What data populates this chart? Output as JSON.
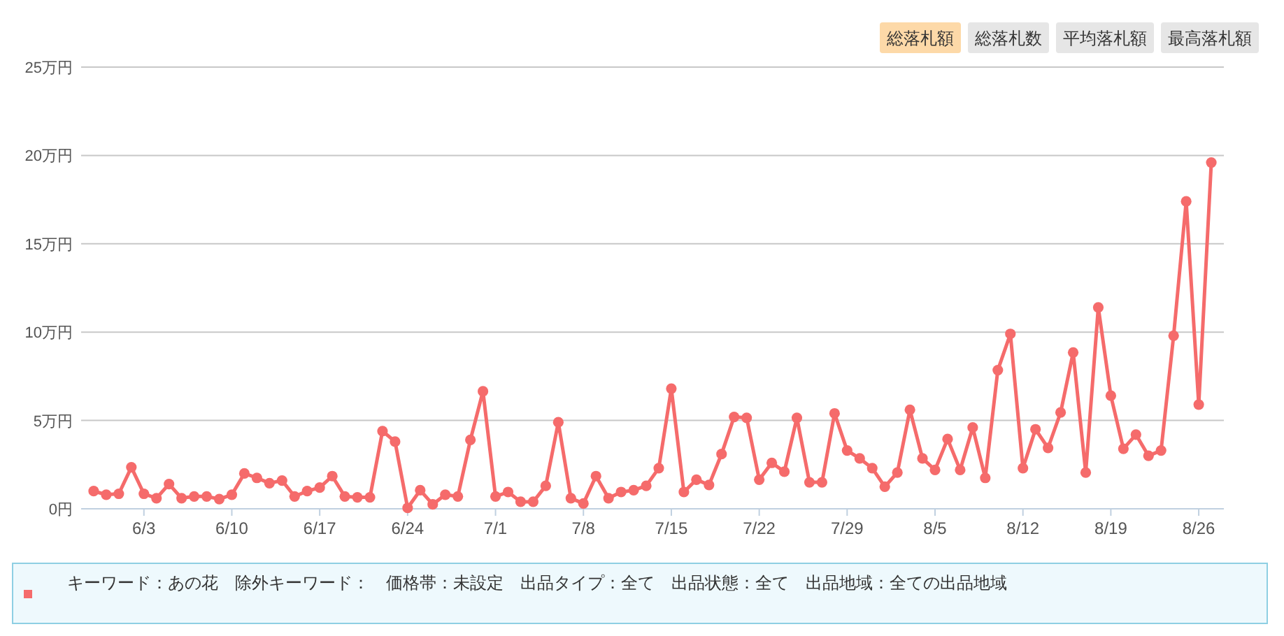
{
  "chart_data": {
    "type": "line",
    "color": "#f56b6b",
    "marker": "circle",
    "grid": "y",
    "x": [
      "--05-30",
      "--05-31",
      "--06-01",
      "--06-02",
      "--06-03",
      "--06-04",
      "--06-05",
      "--06-06",
      "--06-07",
      "--06-08",
      "--06-09",
      "--06-10",
      "--06-11",
      "--06-12",
      "--06-13",
      "--06-14",
      "--06-15",
      "--06-16",
      "--06-17",
      "--06-18",
      "--06-19",
      "--06-20",
      "--06-21",
      "--06-22",
      "--06-23",
      "--06-24",
      "--06-25",
      "--06-26",
      "--06-27",
      "--06-28",
      "--06-29",
      "--06-30",
      "--07-01",
      "--07-02",
      "--07-03",
      "--07-04",
      "--07-05",
      "--07-06",
      "--07-07",
      "--07-08",
      "--07-09",
      "--07-10",
      "--07-11",
      "--07-12",
      "--07-13",
      "--07-14",
      "--07-15",
      "--07-16",
      "--07-17",
      "--07-18",
      "--07-19",
      "--07-20",
      "--07-21",
      "--07-22",
      "--07-23",
      "--07-24",
      "--07-25",
      "--07-26",
      "--07-27",
      "--07-28",
      "--07-29",
      "--07-30",
      "--07-31",
      "--08-01",
      "--08-02",
      "--08-03",
      "--08-04",
      "--08-05",
      "--08-06",
      "--08-07",
      "--08-08",
      "--08-09",
      "--08-10",
      "--08-11",
      "--08-12",
      "--08-13",
      "--08-14",
      "--08-15",
      "--08-16",
      "--08-17",
      "--08-18",
      "--08-19",
      "--08-20",
      "--08-21",
      "--08-22",
      "--08-23",
      "--08-24",
      "--08-25",
      "--08-26",
      "--08-27"
    ],
    "values": [
      1.0,
      0.8,
      0.85,
      2.35,
      0.85,
      0.6,
      1.4,
      0.6,
      0.7,
      0.7,
      0.55,
      0.8,
      2.0,
      1.75,
      1.45,
      1.6,
      0.7,
      1.0,
      1.2,
      1.85,
      0.7,
      0.65,
      0.65,
      4.4,
      3.8,
      0.05,
      1.05,
      0.25,
      0.8,
      0.7,
      3.9,
      6.65,
      0.7,
      0.95,
      0.4,
      0.4,
      1.3,
      4.9,
      0.6,
      0.3,
      1.85,
      0.6,
      0.95,
      1.05,
      1.3,
      2.3,
      6.8,
      0.95,
      1.65,
      1.35,
      3.1,
      5.2,
      5.15,
      1.65,
      2.6,
      2.1,
      5.15,
      1.5,
      1.5,
      5.4,
      3.3,
      2.85,
      2.3,
      1.25,
      2.05,
      5.6,
      2.85,
      2.2,
      3.95,
      2.2,
      4.6,
      1.75,
      7.85,
      9.9,
      2.3,
      4.5,
      3.45,
      5.45,
      8.85,
      2.05,
      11.4,
      6.4,
      3.4,
      4.2,
      3.0,
      3.3,
      9.8,
      17.4,
      5.9,
      19.6
    ],
    "xlim": [
      "--05-29",
      "--08-28"
    ],
    "xticks": [
      {
        "value": "--06-03",
        "label": "6/3"
      },
      {
        "value": "--06-10",
        "label": "6/10"
      },
      {
        "value": "--06-17",
        "label": "6/17"
      },
      {
        "value": "--06-24",
        "label": "6/24"
      },
      {
        "value": "--07-01",
        "label": "7/1"
      },
      {
        "value": "--07-08",
        "label": "7/8"
      },
      {
        "value": "--07-15",
        "label": "7/15"
      },
      {
        "value": "--07-22",
        "label": "7/22"
      },
      {
        "value": "--07-29",
        "label": "7/29"
      },
      {
        "value": "--08-05",
        "label": "8/5"
      },
      {
        "value": "--08-12",
        "label": "8/12"
      },
      {
        "value": "--08-19",
        "label": "8/19"
      },
      {
        "value": "--08-26",
        "label": "8/26"
      }
    ],
    "ylim": [
      0,
      25
    ],
    "yticks": [
      {
        "value": 0,
        "label": "0円"
      },
      {
        "value": 5,
        "label": "5万円"
      },
      {
        "value": 10,
        "label": "10万円"
      },
      {
        "value": 15,
        "label": "15万円"
      },
      {
        "value": 20,
        "label": "20万円"
      },
      {
        "value": 25,
        "label": "25万円"
      }
    ],
    "annotations": [
      "総落札額",
      "総落札数",
      "平均落札額",
      "最高落札額",
      "キーワード：あの花　除外キーワード：　価格帯：未設定　出品タイプ：全て　出品状態：全て　出品地域：全ての出品地域"
    ]
  }
}
